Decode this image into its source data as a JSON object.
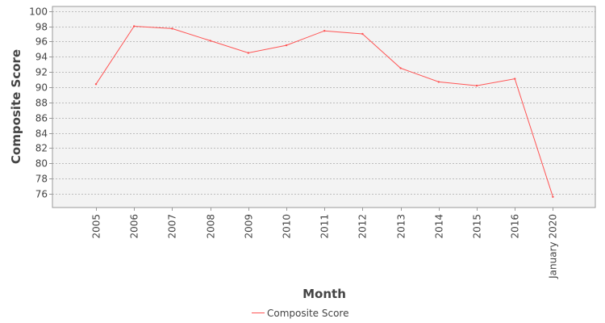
{
  "chart_data": {
    "type": "line",
    "title": "",
    "xlabel": "Month",
    "ylabel": "Composite Score",
    "categories": [
      "2005",
      "2006",
      "2007",
      "2008",
      "2009",
      "2010",
      "2011",
      "2012",
      "2013",
      "2014",
      "2015",
      "2016",
      "January 2020"
    ],
    "series": [
      {
        "name": "Composite Score",
        "values": [
          90.4,
          98.0,
          97.7,
          96.1,
          94.5,
          95.5,
          97.4,
          97.0,
          92.5,
          90.7,
          90.2,
          91.1,
          75.6
        ]
      }
    ],
    "ylim": [
      74.2,
      100.6
    ],
    "yticks": [
      76,
      78,
      80,
      82,
      84,
      86,
      88,
      90,
      92,
      94,
      96,
      98,
      100
    ],
    "grid": "horizontal dashed",
    "legend_position": "bottom-center",
    "colors": {
      "series": "#ff5555",
      "plot_background": "#f3f3f3",
      "gridline": "#888888",
      "axis": "#999999",
      "text": "#444444"
    }
  }
}
